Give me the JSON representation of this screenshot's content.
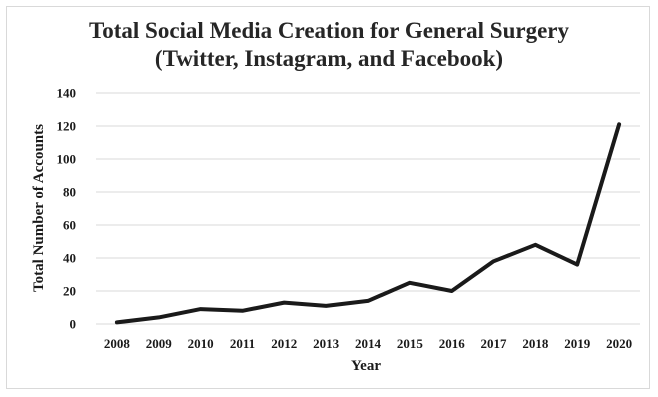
{
  "chart_data": {
    "type": "line",
    "title": "Total Social Media Creation for General Surgery",
    "subtitle": "(Twitter, Instagram, and Facebook)",
    "xlabel": "Year",
    "ylabel": "Total Number of Accounts",
    "categories": [
      "2008",
      "2009",
      "2010",
      "2011",
      "2012",
      "2013",
      "2014",
      "2015",
      "2016",
      "2017",
      "2018",
      "2019",
      "2020"
    ],
    "values": [
      1,
      4,
      9,
      8,
      13,
      11,
      14,
      25,
      20,
      38,
      48,
      36,
      121
    ],
    "ylim": [
      0,
      140
    ],
    "yticks": [
      0,
      20,
      40,
      60,
      80,
      100,
      120,
      140
    ],
    "grid": "horizontal",
    "legend": "none",
    "line_color": "#1a1a1a",
    "grid_color": "#d9d9d9"
  }
}
